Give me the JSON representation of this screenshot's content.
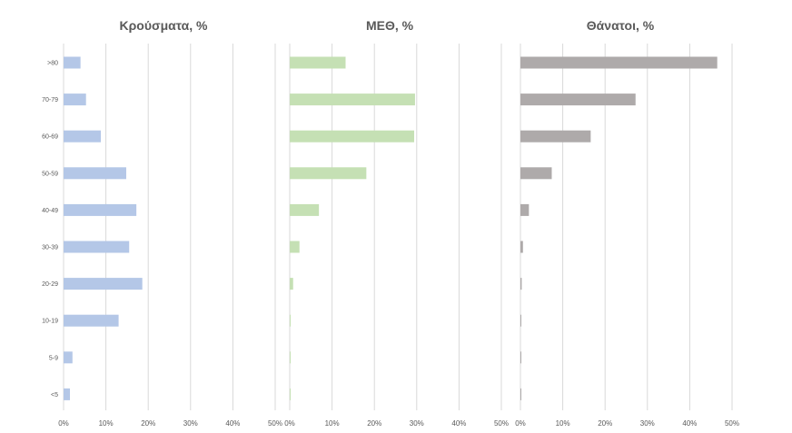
{
  "chart_data": {
    "type": "bar",
    "orientation": "horizontal",
    "categories": [
      ">80",
      "70-79",
      "60-69",
      "50-59",
      "40-49",
      "30-39",
      "20-29",
      "10-19",
      "5-9",
      "<5"
    ],
    "xlim": [
      0,
      50
    ],
    "x_ticks": [
      "0%",
      "10%",
      "20%",
      "30%",
      "40%",
      "50%"
    ],
    "grid": true,
    "panels": [
      {
        "title": "Κρούσματα, %",
        "color": "#b4c7e7",
        "values": [
          4.0,
          5.3,
          8.8,
          14.8,
          17.2,
          15.5,
          18.6,
          13.0,
          2.1,
          1.5
        ]
      },
      {
        "title": "ΜΕΘ, %",
        "color": "#c5e0b4",
        "values": [
          13.2,
          29.6,
          29.4,
          18.1,
          6.9,
          2.3,
          0.8,
          0.2,
          0,
          0
        ]
      },
      {
        "title": "Θάνατοι, %",
        "color": "#aeaaaa",
        "values": [
          46.5,
          27.2,
          16.6,
          7.4,
          2.0,
          0.6,
          0.3,
          0.2,
          0,
          0.2
        ]
      }
    ]
  }
}
